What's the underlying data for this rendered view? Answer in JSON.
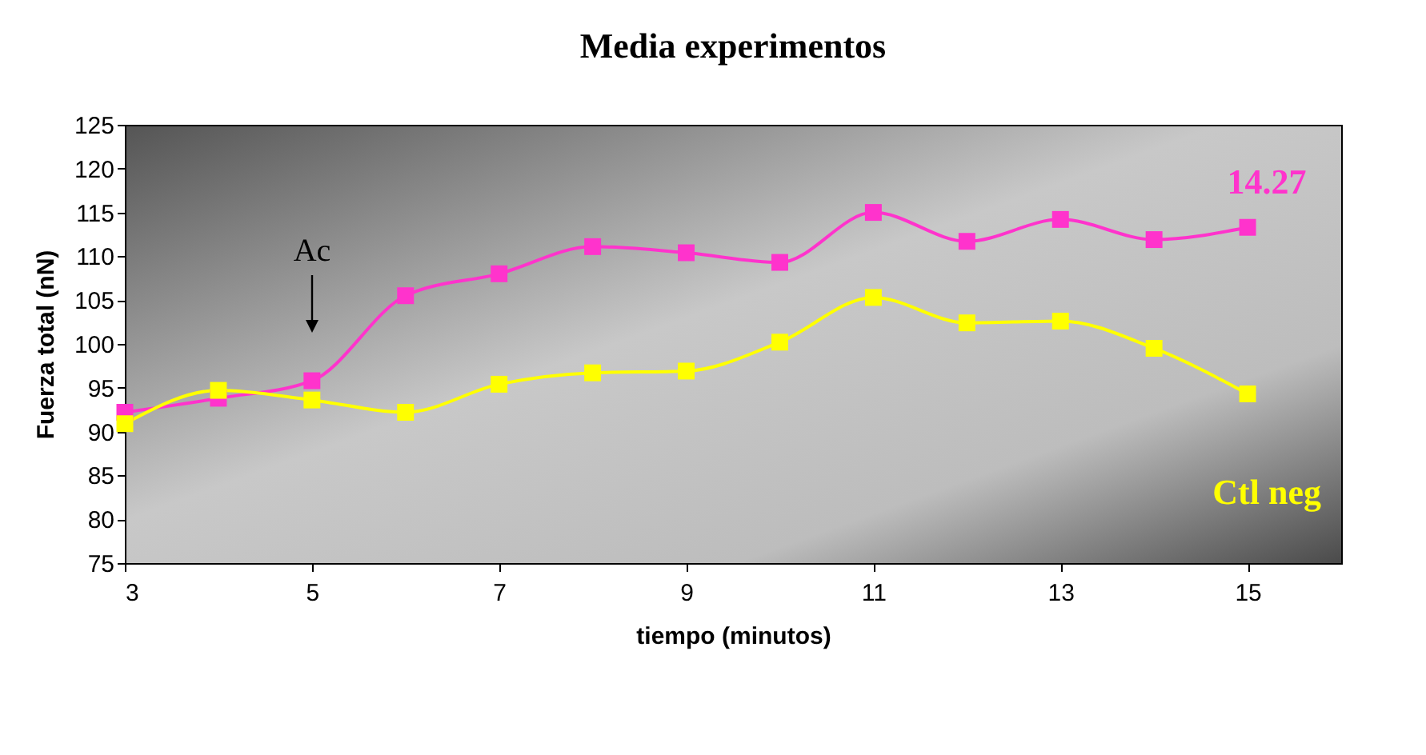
{
  "chart_data": {
    "type": "line",
    "title": "Media experimentos",
    "xlabel": "tiempo (minutos)",
    "ylabel": "Fuerza total (nN)",
    "x": [
      3,
      4,
      5,
      6,
      7,
      8,
      9,
      10,
      11,
      12,
      13,
      14,
      15
    ],
    "series": [
      {
        "name": "14.27",
        "color": "#ff33cc",
        "values": [
          92.2,
          93.8,
          95.8,
          105.5,
          108,
          111.1,
          110.4,
          109.3,
          115,
          111.7,
          114.2,
          111.9,
          113.3
        ]
      },
      {
        "name": "Ctl neg",
        "color": "#ffff00",
        "values": [
          90.9,
          94.7,
          93.6,
          92.2,
          95.4,
          96.7,
          96.9,
          100.2,
          105.3,
          102.4,
          102.6,
          99.5,
          94.3
        ]
      }
    ],
    "xlim": [
      3,
      16
    ],
    "xticks": [
      3,
      5,
      7,
      9,
      11,
      13,
      15
    ],
    "ylim": [
      75,
      125
    ],
    "yticks": [
      75,
      80,
      85,
      90,
      95,
      100,
      105,
      110,
      115,
      120,
      125
    ],
    "annotations": [
      "Ac"
    ],
    "marker": "square",
    "line_style": "solid",
    "grid": false,
    "legend": false
  }
}
